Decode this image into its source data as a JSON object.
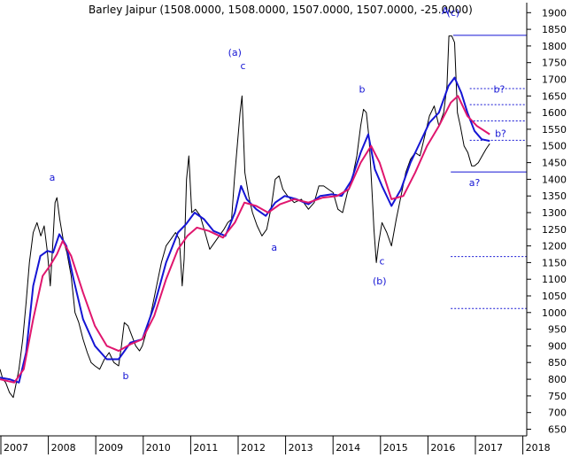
{
  "chart_data": {
    "type": "line",
    "title": "Barley Jaipur (1508.0000, 1508.0000, 1507.0000, 1507.0000, -25.0000)",
    "y_axis": {
      "ticks": [
        "650",
        "700",
        "750",
        "800",
        "850",
        "900",
        "950",
        "1000",
        "1050",
        "1100",
        "1150",
        "1200",
        "1250",
        "1300",
        "1350",
        "1400",
        "1450",
        "1500",
        "1550",
        "1600",
        "1650",
        "1700",
        "1750",
        "1800",
        "1850",
        "1900"
      ],
      "range": [
        630,
        1930
      ],
      "position": "right"
    },
    "x_axis": {
      "ticks": [
        "2007",
        "2008",
        "2009",
        "2010",
        "2011",
        "2012",
        "2013",
        "2014",
        "2015",
        "2016",
        "2017",
        "2018"
      ],
      "range": [
        2007.0,
        2018.1
      ]
    },
    "grid": false,
    "series": [
      {
        "color": "#000000",
        "points": [
          [
            2007.0,
            830
          ],
          [
            2007.06,
            800
          ],
          [
            2007.12,
            790
          ],
          [
            2007.2,
            760
          ],
          [
            2007.28,
            745
          ],
          [
            2007.33,
            780
          ],
          [
            2007.4,
            830
          ],
          [
            2007.48,
            920
          ],
          [
            2007.55,
            1030
          ],
          [
            2007.62,
            1150
          ],
          [
            2007.7,
            1240
          ],
          [
            2007.78,
            1270
          ],
          [
            2007.86,
            1230
          ],
          [
            2007.93,
            1260
          ],
          [
            2008.0,
            1180
          ],
          [
            2008.06,
            1080
          ],
          [
            2008.11,
            1200
          ],
          [
            2008.16,
            1330
          ],
          [
            2008.2,
            1345
          ],
          [
            2008.26,
            1280
          ],
          [
            2008.33,
            1220
          ],
          [
            2008.41,
            1180
          ],
          [
            2008.5,
            1110
          ],
          [
            2008.58,
            1000
          ],
          [
            2008.66,
            970
          ],
          [
            2008.75,
            920
          ],
          [
            2008.84,
            880
          ],
          [
            2008.92,
            850
          ],
          [
            2009.0,
            840
          ],
          [
            2009.1,
            830
          ],
          [
            2009.2,
            860
          ],
          [
            2009.3,
            880
          ],
          [
            2009.4,
            850
          ],
          [
            2009.5,
            840
          ],
          [
            2009.56,
            900
          ],
          [
            2009.62,
            970
          ],
          [
            2009.7,
            960
          ],
          [
            2009.78,
            930
          ],
          [
            2009.86,
            900
          ],
          [
            2009.94,
            885
          ],
          [
            2010.0,
            900
          ],
          [
            2010.1,
            950
          ],
          [
            2010.2,
            1010
          ],
          [
            2010.3,
            1080
          ],
          [
            2010.4,
            1150
          ],
          [
            2010.5,
            1200
          ],
          [
            2010.6,
            1220
          ],
          [
            2010.7,
            1240
          ],
          [
            2010.78,
            1220
          ],
          [
            2010.84,
            1080
          ],
          [
            2010.88,
            1160
          ],
          [
            2010.93,
            1400
          ],
          [
            2010.98,
            1470
          ],
          [
            2011.04,
            1300
          ],
          [
            2011.12,
            1310
          ],
          [
            2011.22,
            1290
          ],
          [
            2011.32,
            1240
          ],
          [
            2011.42,
            1190
          ],
          [
            2011.52,
            1210
          ],
          [
            2011.62,
            1230
          ],
          [
            2011.72,
            1250
          ],
          [
            2011.8,
            1270
          ],
          [
            2011.88,
            1280
          ],
          [
            2011.94,
            1400
          ],
          [
            2012.0,
            1500
          ],
          [
            2012.06,
            1600
          ],
          [
            2012.1,
            1650
          ],
          [
            2012.16,
            1420
          ],
          [
            2012.24,
            1350
          ],
          [
            2012.32,
            1300
          ],
          [
            2012.42,
            1260
          ],
          [
            2012.52,
            1230
          ],
          [
            2012.62,
            1250
          ],
          [
            2012.72,
            1320
          ],
          [
            2012.8,
            1400
          ],
          [
            2012.88,
            1410
          ],
          [
            2012.96,
            1370
          ],
          [
            2013.06,
            1350
          ],
          [
            2013.2,
            1330
          ],
          [
            2013.35,
            1340
          ],
          [
            2013.5,
            1310
          ],
          [
            2013.62,
            1330
          ],
          [
            2013.72,
            1380
          ],
          [
            2013.82,
            1380
          ],
          [
            2013.92,
            1370
          ],
          [
            2014.02,
            1360
          ],
          [
            2014.12,
            1310
          ],
          [
            2014.22,
            1300
          ],
          [
            2014.32,
            1360
          ],
          [
            2014.42,
            1400
          ],
          [
            2014.52,
            1470
          ],
          [
            2014.6,
            1560
          ],
          [
            2014.66,
            1610
          ],
          [
            2014.72,
            1600
          ],
          [
            2014.78,
            1520
          ],
          [
            2014.84,
            1360
          ],
          [
            2014.88,
            1250
          ],
          [
            2014.93,
            1150
          ],
          [
            2014.98,
            1210
          ],
          [
            2015.05,
            1270
          ],
          [
            2015.15,
            1240
          ],
          [
            2015.25,
            1200
          ],
          [
            2015.35,
            1280
          ],
          [
            2015.45,
            1350
          ],
          [
            2015.55,
            1420
          ],
          [
            2015.65,
            1460
          ],
          [
            2015.75,
            1480
          ],
          [
            2015.85,
            1470
          ],
          [
            2015.95,
            1530
          ],
          [
            2016.05,
            1590
          ],
          [
            2016.15,
            1620
          ],
          [
            2016.25,
            1560
          ],
          [
            2016.35,
            1600
          ],
          [
            2016.42,
            1680
          ],
          [
            2016.46,
            1830
          ],
          [
            2016.52,
            1830
          ],
          [
            2016.58,
            1810
          ],
          [
            2016.64,
            1600
          ],
          [
            2016.7,
            1560
          ],
          [
            2016.78,
            1500
          ],
          [
            2016.86,
            1480
          ],
          [
            2016.94,
            1440
          ],
          [
            2017.0,
            1440
          ],
          [
            2017.08,
            1450
          ],
          [
            2017.16,
            1470
          ],
          [
            2017.24,
            1490
          ],
          [
            2017.32,
            1507
          ]
        ]
      },
      {
        "color": "#1515d4",
        "points": [
          [
            2007.0,
            805
          ],
          [
            2007.2,
            800
          ],
          [
            2007.4,
            790
          ],
          [
            2007.55,
            880
          ],
          [
            2007.7,
            1080
          ],
          [
            2007.85,
            1170
          ],
          [
            2008.0,
            1185
          ],
          [
            2008.12,
            1180
          ],
          [
            2008.25,
            1235
          ],
          [
            2008.4,
            1200
          ],
          [
            2008.55,
            1100
          ],
          [
            2008.75,
            980
          ],
          [
            2009.0,
            900
          ],
          [
            2009.25,
            860
          ],
          [
            2009.5,
            860
          ],
          [
            2009.75,
            910
          ],
          [
            2010.0,
            920
          ],
          [
            2010.25,
            1020
          ],
          [
            2010.5,
            1150
          ],
          [
            2010.75,
            1240
          ],
          [
            2010.92,
            1265
          ],
          [
            2011.1,
            1300
          ],
          [
            2011.3,
            1280
          ],
          [
            2011.5,
            1245
          ],
          [
            2011.75,
            1230
          ],
          [
            2011.95,
            1300
          ],
          [
            2012.08,
            1380
          ],
          [
            2012.2,
            1340
          ],
          [
            2012.4,
            1310
          ],
          [
            2012.6,
            1290
          ],
          [
            2012.8,
            1330
          ],
          [
            2013.0,
            1350
          ],
          [
            2013.25,
            1340
          ],
          [
            2013.5,
            1325
          ],
          [
            2013.75,
            1350
          ],
          [
            2014.0,
            1355
          ],
          [
            2014.2,
            1350
          ],
          [
            2014.4,
            1395
          ],
          [
            2014.6,
            1480
          ],
          [
            2014.76,
            1535
          ],
          [
            2014.9,
            1430
          ],
          [
            2015.05,
            1380
          ],
          [
            2015.25,
            1320
          ],
          [
            2015.45,
            1370
          ],
          [
            2015.65,
            1450
          ],
          [
            2015.85,
            1510
          ],
          [
            2016.05,
            1570
          ],
          [
            2016.25,
            1600
          ],
          [
            2016.45,
            1680
          ],
          [
            2016.58,
            1705
          ],
          [
            2016.72,
            1660
          ],
          [
            2016.85,
            1600
          ],
          [
            2017.0,
            1545
          ],
          [
            2017.15,
            1520
          ],
          [
            2017.32,
            1515
          ]
        ]
      },
      {
        "color": "#e0166e",
        "points": [
          [
            2007.0,
            800
          ],
          [
            2007.3,
            790
          ],
          [
            2007.5,
            830
          ],
          [
            2007.7,
            980
          ],
          [
            2007.9,
            1110
          ],
          [
            2008.05,
            1140
          ],
          [
            2008.2,
            1175
          ],
          [
            2008.32,
            1215
          ],
          [
            2008.5,
            1170
          ],
          [
            2008.75,
            1060
          ],
          [
            2009.0,
            960
          ],
          [
            2009.25,
            900
          ],
          [
            2009.5,
            885
          ],
          [
            2009.75,
            905
          ],
          [
            2010.0,
            920
          ],
          [
            2010.25,
            990
          ],
          [
            2010.5,
            1100
          ],
          [
            2010.75,
            1190
          ],
          [
            2010.95,
            1230
          ],
          [
            2011.15,
            1255
          ],
          [
            2011.4,
            1245
          ],
          [
            2011.7,
            1225
          ],
          [
            2011.95,
            1270
          ],
          [
            2012.15,
            1330
          ],
          [
            2012.4,
            1320
          ],
          [
            2012.65,
            1300
          ],
          [
            2012.9,
            1325
          ],
          [
            2013.2,
            1340
          ],
          [
            2013.5,
            1330
          ],
          [
            2013.8,
            1345
          ],
          [
            2014.1,
            1350
          ],
          [
            2014.35,
            1370
          ],
          [
            2014.6,
            1450
          ],
          [
            2014.82,
            1500
          ],
          [
            2015.0,
            1450
          ],
          [
            2015.25,
            1340
          ],
          [
            2015.5,
            1350
          ],
          [
            2015.75,
            1420
          ],
          [
            2016.0,
            1500
          ],
          [
            2016.25,
            1560
          ],
          [
            2016.5,
            1630
          ],
          [
            2016.65,
            1650
          ],
          [
            2016.85,
            1590
          ],
          [
            2017.05,
            1560
          ],
          [
            2017.32,
            1535
          ]
        ]
      }
    ],
    "annotations": {
      "wave_labels": [
        {
          "text": "a",
          "x": 2008.1,
          "y": 1395
        },
        {
          "text": "b",
          "x": 2009.65,
          "y": 800
        },
        {
          "text": "(a)",
          "x": 2011.95,
          "y": 1770
        },
        {
          "text": "c",
          "x": 2012.12,
          "y": 1730
        },
        {
          "text": "a",
          "x": 2012.78,
          "y": 1185
        },
        {
          "text": "b",
          "x": 2014.63,
          "y": 1660
        },
        {
          "text": "c",
          "x": 2015.05,
          "y": 1145
        },
        {
          "text": "(b)",
          "x": 2015.0,
          "y": 1085
        },
        {
          "text": "A",
          "x": 2016.38,
          "y": 1895
        },
        {
          "text": "(c)",
          "x": 2016.55,
          "y": 1890
        },
        {
          "text": "b?",
          "x": 2017.52,
          "y": 1660
        },
        {
          "text": "b?",
          "x": 2017.55,
          "y": 1527
        },
        {
          "text": "a?",
          "x": 2017.0,
          "y": 1380
        }
      ],
      "level_lines": [
        {
          "y": 1832,
          "x_start": 2016.55,
          "style": "solid"
        },
        {
          "y": 1422,
          "x_start": 2016.5,
          "style": "solid"
        },
        {
          "y": 1672,
          "x_start": 2016.9,
          "style": "dotted"
        },
        {
          "y": 1624,
          "x_start": 2016.9,
          "style": "dotted"
        },
        {
          "y": 1575,
          "x_start": 2016.9,
          "style": "dotted"
        },
        {
          "y": 1517,
          "x_start": 2016.9,
          "style": "dotted"
        },
        {
          "y": 1168,
          "x_start": 2016.5,
          "style": "dotted"
        },
        {
          "y": 1012,
          "x_start": 2016.5,
          "style": "dotted"
        }
      ]
    }
  }
}
